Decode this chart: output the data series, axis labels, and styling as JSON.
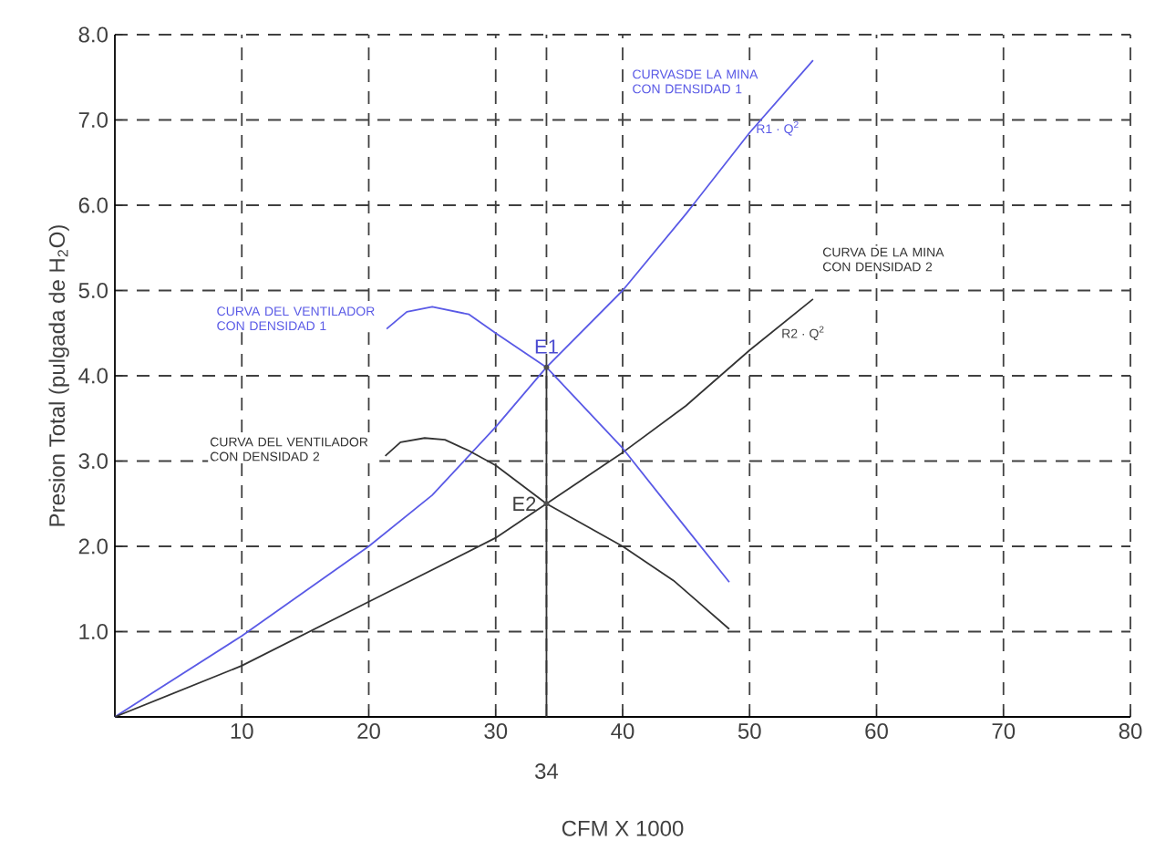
{
  "chart_data": {
    "type": "line",
    "xlabel": "CFM X 1000",
    "ylabel": "Presion Total (pulgada de H$_{2}$O)",
    "xlim": [
      0,
      80
    ],
    "ylim": [
      0,
      8
    ],
    "xticks": [
      10,
      20,
      30,
      {
        "value": 34,
        "label": null
      },
      40,
      50,
      60,
      70,
      80
    ],
    "yticks": [
      {
        "value": 1,
        "label": "1.0"
      },
      {
        "value": 2,
        "label": "2.0"
      },
      {
        "value": 3,
        "label": "3.0"
      },
      {
        "value": 4,
        "label": "4.0"
      },
      {
        "value": 5,
        "label": "5.0"
      },
      {
        "value": 6,
        "label": "6.0"
      },
      {
        "value": 7,
        "label": "7.0"
      },
      {
        "value": 8,
        "label": "8.0"
      }
    ],
    "grid": true,
    "line_style": "solid",
    "series": [
      {
        "name": "CURVASDE LA MINA CON DENSIDAD 1",
        "color": "#5a5ae6",
        "x": [
          0,
          10,
          20,
          25,
          30,
          34,
          40,
          45,
          50,
          55
        ],
        "values": [
          0,
          0.95,
          2.0,
          2.6,
          3.4,
          4.1,
          5.0,
          5.9,
          6.85,
          7.7
        ]
      },
      {
        "name": "CURVA DE LA MINA CON DENSIDAD 2",
        "color": "#333333",
        "x": [
          0,
          10,
          20,
          30,
          34,
          40,
          45,
          50,
          55
        ],
        "values": [
          0,
          0.6,
          1.35,
          2.1,
          2.5,
          3.1,
          3.65,
          4.3,
          4.9
        ]
      },
      {
        "name": "CURVA DEL VENTILADOR CON DENSIDAD 1",
        "color": "#5a5ae6",
        "x": [
          21.4,
          23,
          25,
          27.9,
          30,
          34,
          40,
          44,
          48.4
        ],
        "values": [
          4.55,
          4.75,
          4.81,
          4.72,
          4.5,
          4.1,
          3.15,
          2.4,
          1.58
        ]
      },
      {
        "name": "CURVA DEL VENTILADOR CON DENSIDAD 2",
        "color": "#333333",
        "x": [
          21.3,
          22.5,
          24.4,
          26,
          27.9,
          30,
          34,
          40,
          44,
          48.4
        ],
        "values": [
          3.06,
          3.22,
          3.27,
          3.25,
          3.12,
          2.95,
          2.5,
          2.0,
          1.6,
          1.03
        ]
      },
      {
        "color": "#333333",
        "x": [
          34,
          34
        ],
        "values": [
          0,
          4.1
        ]
      }
    ],
    "annotations": [
      {
        "text": "E1",
        "x": 34,
        "y": 4.1
      },
      {
        "text": "E2",
        "x": 34,
        "y": 2.5
      },
      {
        "text": "R1 · Q$^{2}$",
        "x": 50,
        "y": 6.9
      },
      {
        "text": "R2 · Q$^{2}$",
        "x": 52,
        "y": 4.5
      },
      {
        "text": "34",
        "x": 34,
        "y": 0
      }
    ]
  }
}
